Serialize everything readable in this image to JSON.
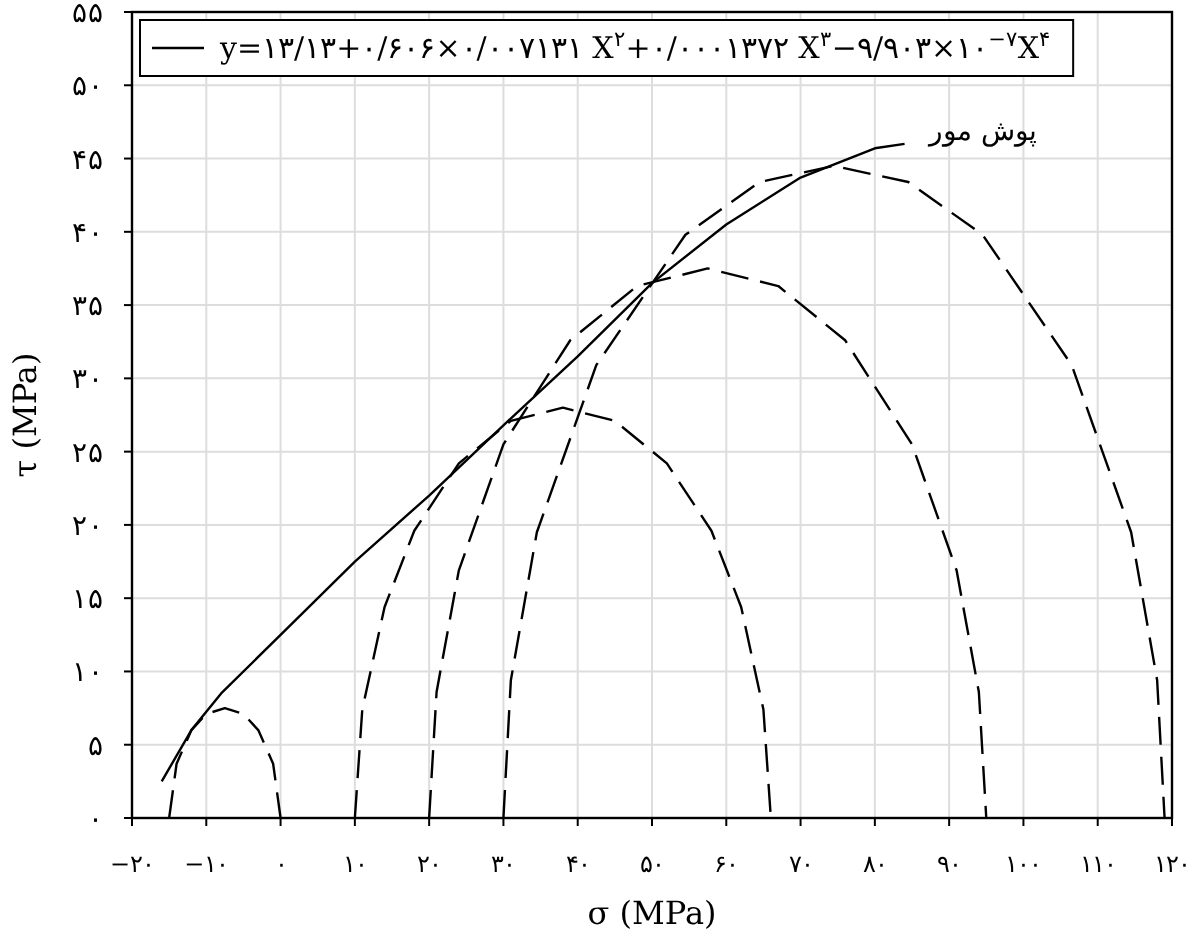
{
  "chart_data": {
    "type": "line",
    "xlabel": "σ (MPa)",
    "ylabel": "τ (MPa)",
    "xlim": [
      -20,
      120
    ],
    "ylim": [
      0,
      55
    ],
    "xticks": [
      {
        "value": -20,
        "label": "−۲۰"
      },
      {
        "value": -10,
        "label": "−۱۰"
      },
      {
        "value": 0,
        "label": "۰"
      },
      {
        "value": 10,
        "label": "۱۰"
      },
      {
        "value": 20,
        "label": "۲۰"
      },
      {
        "value": 30,
        "label": "۳۰"
      },
      {
        "value": 40,
        "label": "۴۰"
      },
      {
        "value": 50,
        "label": "۵۰"
      },
      {
        "value": 60,
        "label": "۶۰"
      },
      {
        "value": 70,
        "label": "۷۰"
      },
      {
        "value": 80,
        "label": "۸۰"
      },
      {
        "value": 90,
        "label": "۹۰"
      },
      {
        "value": 100,
        "label": "۱۰۰"
      },
      {
        "value": 110,
        "label": "۱۱۰"
      },
      {
        "value": 120,
        "label": "۱۲۰"
      }
    ],
    "yticks": [
      {
        "value": 0,
        "label": "۰"
      },
      {
        "value": 5,
        "label": "۵"
      },
      {
        "value": 10,
        "label": "۱۰"
      },
      {
        "value": 15,
        "label": "۱۵"
      },
      {
        "value": 20,
        "label": "۲۰"
      },
      {
        "value": 25,
        "label": "۲۵"
      },
      {
        "value": 30,
        "label": "۳۰"
      },
      {
        "value": 35,
        "label": "۳۵"
      },
      {
        "value": 40,
        "label": "۴۰"
      },
      {
        "value": 45,
        "label": "۴۵"
      },
      {
        "value": 50,
        "label": "۵۰"
      },
      {
        "value": 55,
        "label": "۵۵"
      }
    ],
    "grid": true,
    "legend": "top left",
    "marker": "none",
    "annotations": [
      "پوش مور"
    ],
    "series": [
      {
        "name": "y=۱۳/۱۳+۰/۶۰۶×۰/۰۰۷۱۳۱ X$^{۲}$+۰/۰۰۰۱۳۷۲ X$^{۳}$−۹/۹۰۳×۱۰$^{−۷}$X$^{۴}$",
        "color": "#000000",
        "line_style": "solid",
        "x": [
          -16,
          -12,
          -8,
          0,
          10,
          20,
          30,
          40,
          50,
          60,
          70,
          80,
          84
        ],
        "values": [
          2.5,
          6,
          8.5,
          12.5,
          17.5,
          22,
          26.8,
          31.5,
          36.5,
          40.5,
          43.7,
          45.7,
          46
        ]
      },
      {
        "color": "#000000",
        "line_style": "dashed",
        "x": [
          -15,
          -14,
          -12,
          -10,
          -7.5,
          -5,
          -3,
          -1,
          0
        ],
        "values": [
          0,
          3.7,
          6,
          7.1,
          7.5,
          7.1,
          6,
          3.7,
          0
        ]
      },
      {
        "color": "#000000",
        "line_style": "dashed",
        "x": [
          10,
          11,
          14,
          18,
          24,
          31,
          38,
          45,
          52,
          58,
          62,
          65,
          66
        ],
        "values": [
          0,
          7.4,
          14.4,
          19.6,
          24.2,
          27.1,
          28,
          27.1,
          24.2,
          19.6,
          14.4,
          7.4,
          0
        ]
      },
      {
        "color": "#000000",
        "line_style": "dashed",
        "x": [
          20,
          21,
          24,
          30,
          39,
          48,
          57.5,
          67,
          76,
          85,
          91,
          94,
          95
        ],
        "values": [
          0,
          8.6,
          16.9,
          25.5,
          32.6,
          36.3,
          37.5,
          36.3,
          32.6,
          25.5,
          16.9,
          8.6,
          0
        ]
      },
      {
        "color": "#000000",
        "line_style": "dashed",
        "x": [
          30,
          31,
          34.5,
          42.5,
          54.5,
          64.5,
          74.5,
          84.5,
          94.5,
          106.5,
          114.5,
          118,
          119
        ],
        "values": [
          0,
          9.4,
          19.5,
          30.9,
          39.8,
          43.4,
          44.5,
          43.4,
          39.8,
          30.9,
          19.5,
          9.4,
          0
        ]
      }
    ]
  }
}
